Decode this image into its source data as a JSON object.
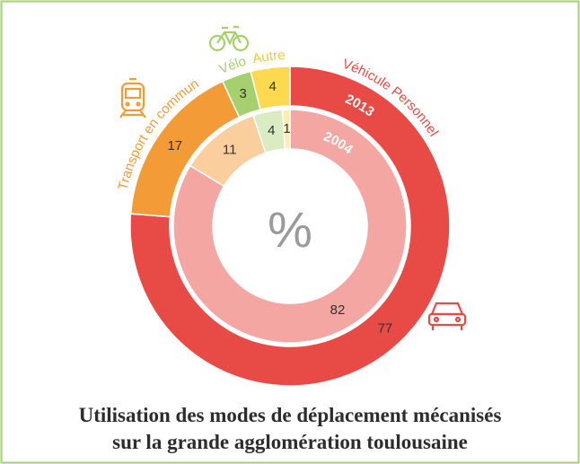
{
  "chart_data": {
    "type": "donut",
    "title": [
      "Utilisation des modes de déplacement mécanisés",
      "sur la grande agglomération toulousaine"
    ],
    "center_label": "%",
    "categories": [
      "Véhicule Personnel",
      "Transport en commun",
      "Vélo",
      "Autre"
    ],
    "category_colors": [
      "#e84a45",
      "#f39c37",
      "#a6cf6e",
      "#f5c93a"
    ],
    "series": [
      {
        "name": "2013",
        "values": [
          77,
          17,
          3,
          4
        ],
        "colors": [
          "#e84a45",
          "#f39c37",
          "#a6cf6e",
          "#fcd94f"
        ]
      },
      {
        "name": "2004",
        "values": [
          82,
          11,
          4,
          1
        ],
        "colors": [
          "#f4a6a2",
          "#fbcf9d",
          "#d9ecc2",
          "#fdeeb0"
        ]
      }
    ]
  }
}
